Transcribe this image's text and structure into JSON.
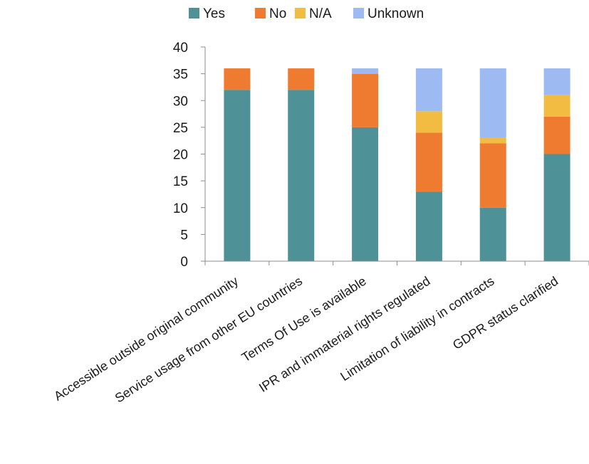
{
  "chart_data": {
    "type": "bar",
    "stacked": true,
    "categories": [
      "Accessible  outside original community",
      "Service usage from other EU countries",
      "Terms Of Use is available",
      "IPR and immaterial rights regulated",
      "Limitation of liability in contracts",
      "GDPR status clarified"
    ],
    "series": [
      {
        "name": "Yes",
        "color": "#4e9197",
        "values": [
          32,
          32,
          25,
          13,
          10,
          20
        ]
      },
      {
        "name": "No",
        "color": "#ee7b30",
        "values": [
          4,
          4,
          10,
          11,
          12,
          7
        ]
      },
      {
        "name": "N/A",
        "color": "#f2bc42",
        "values": [
          0,
          0,
          0,
          4,
          1,
          4
        ]
      },
      {
        "name": "Unknown",
        "color": "#9dbaf2",
        "values": [
          0,
          0,
          1,
          8,
          13,
          5
        ]
      }
    ],
    "ylim": [
      0,
      40
    ],
    "yticks": [
      "0",
      "5",
      "10",
      "15",
      "20",
      "25",
      "30",
      "35",
      "40"
    ],
    "grid": false,
    "legend": "top"
  }
}
